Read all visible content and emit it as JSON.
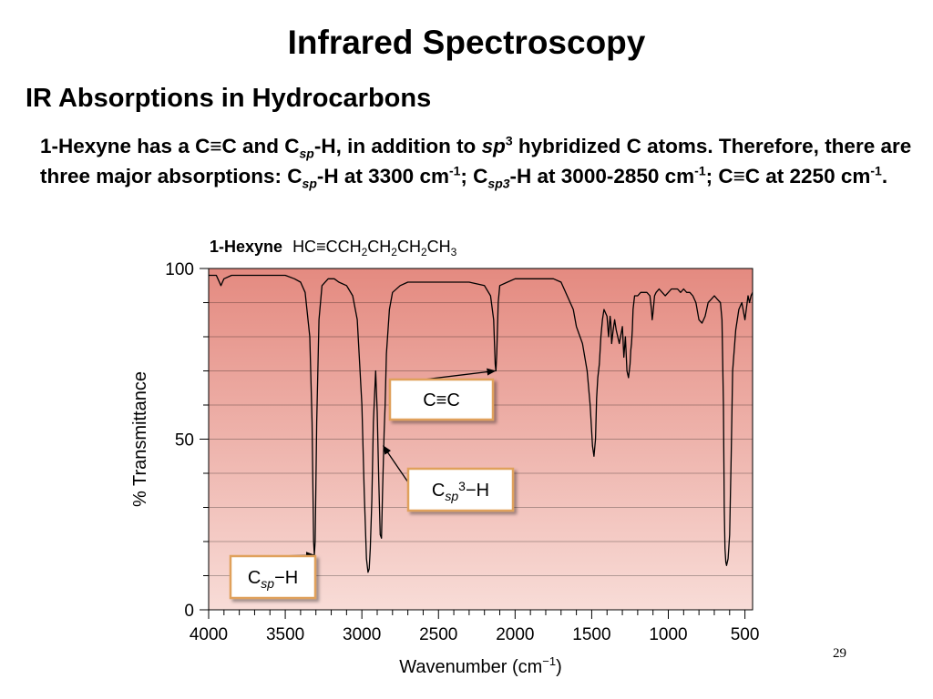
{
  "slide": {
    "title": "Infrared Spectroscopy",
    "subtitle": "IR Absorptions in Hydrocarbons",
    "page_number": "29",
    "text": {
      "p1_a": "1-Hexyne has a C",
      "triple": "≡",
      "p1_b": "C and C",
      "sp": "sp",
      "p1_c": "-H, in addition to ",
      "sp3_base": "sp",
      "sup3": "3",
      "p1_d": " hybridized C atoms. Therefore, there are three major absorptions: C",
      "p1_e": "-H at 3300 cm",
      "sup_m1": "-1",
      "p1_f": "; C",
      "sp3_sub": "sp3",
      "p1_g": "-H at 3000-2850 cm",
      "p1_h": "; C",
      "p1_i": "C at 2250 cm",
      "p1_j": "."
    }
  },
  "chart_data": {
    "type": "line",
    "compound_name": "1-Hexyne",
    "formula": {
      "prefix": "HC",
      "bond": "≡",
      "parts": [
        "CCH",
        "2",
        "CH",
        "2",
        "CH",
        "2",
        "CH",
        "3"
      ]
    },
    "xlabel": "Wavenumber (cm",
    "xlabel_sup": "−1",
    "xlabel_end": ")",
    "ylabel": "% Transmittance",
    "xlim": [
      4000,
      450
    ],
    "ylim": [
      0,
      100
    ],
    "xticks": [
      4000,
      3500,
      3000,
      2500,
      2000,
      1500,
      1000,
      500
    ],
    "xtick_labels": [
      "4000",
      "3500",
      "3000",
      "2500",
      "2000",
      "1500",
      "1000",
      "500"
    ],
    "yticks": [
      0,
      50,
      100
    ],
    "ytick_labels": [
      "0",
      "50",
      "100"
    ],
    "colors": {
      "plot_top": "#e48a80",
      "plot_bottom": "#f8dcd7",
      "line": "#000000",
      "label_border": "#e0a15b"
    },
    "spectrum": {
      "x": [
        4000,
        3950,
        3920,
        3900,
        3850,
        3800,
        3700,
        3600,
        3500,
        3440,
        3400,
        3370,
        3340,
        3325,
        3315,
        3310,
        3305,
        3295,
        3280,
        3260,
        3220,
        3180,
        3150,
        3100,
        3060,
        3030,
        3000,
        2985,
        2970,
        2960,
        2952,
        2945,
        2935,
        2925,
        2910,
        2900,
        2890,
        2880,
        2872,
        2865,
        2855,
        2848,
        2840,
        2820,
        2800,
        2750,
        2700,
        2600,
        2500,
        2400,
        2300,
        2200,
        2160,
        2140,
        2130,
        2125,
        2120,
        2110,
        2100,
        2050,
        2000,
        1950,
        1900,
        1850,
        1800,
        1750,
        1700,
        1660,
        1620,
        1600,
        1560,
        1530,
        1510,
        1495,
        1485,
        1475,
        1468,
        1460,
        1450,
        1440,
        1430,
        1420,
        1400,
        1390,
        1380,
        1375,
        1370,
        1360,
        1350,
        1340,
        1330,
        1320,
        1300,
        1290,
        1280,
        1270,
        1260,
        1250,
        1245,
        1240,
        1235,
        1230,
        1220,
        1200,
        1180,
        1160,
        1140,
        1120,
        1110,
        1105,
        1100,
        1090,
        1080,
        1060,
        1040,
        1020,
        1000,
        980,
        960,
        940,
        920,
        900,
        880,
        860,
        840,
        820,
        800,
        780,
        760,
        740,
        720,
        700,
        680,
        660,
        650,
        640,
        635,
        630,
        625,
        620,
        610,
        600,
        590,
        580,
        560,
        540,
        520,
        500,
        480,
        470,
        460,
        450
      ],
      "y": [
        98,
        98,
        95,
        97,
        98,
        98,
        98,
        98,
        98,
        97,
        96,
        93,
        80,
        55,
        20,
        16,
        20,
        55,
        85,
        95,
        97,
        97,
        96,
        95,
        92,
        85,
        60,
        35,
        15,
        11,
        12,
        18,
        32,
        55,
        70,
        58,
        38,
        22,
        21,
        35,
        52,
        60,
        75,
        88,
        93,
        95,
        96,
        96,
        96,
        96,
        96,
        95,
        92,
        85,
        72,
        70,
        75,
        90,
        95,
        96,
        97,
        97,
        97,
        97,
        97,
        97,
        96,
        92,
        88,
        83,
        78,
        70,
        60,
        48,
        45,
        50,
        62,
        68,
        72,
        80,
        85,
        88,
        86,
        80,
        86,
        84,
        78,
        82,
        85,
        82,
        80,
        78,
        83,
        74,
        80,
        70,
        68,
        72,
        76,
        78,
        82,
        88,
        92,
        92,
        93,
        93,
        93,
        92,
        88,
        85,
        87,
        92,
        93,
        94,
        93,
        92,
        93,
        94,
        94,
        94,
        93,
        94,
        93,
        93,
        92,
        90,
        85,
        84,
        86,
        90,
        91,
        92,
        91,
        90,
        85,
        60,
        30,
        18,
        14,
        13,
        15,
        22,
        45,
        70,
        82,
        88,
        90,
        85,
        92,
        90,
        92,
        93
      ]
    },
    "annotations": [
      {
        "label_base": "C",
        "label_bond": "≡",
        "label_end": "C",
        "label_sub": "",
        "label_sup": "",
        "label_tail": "",
        "point": [
          2130,
          70
        ]
      },
      {
        "label_base": "C",
        "label_bond": "",
        "label_end": "",
        "label_sub": "sp",
        "label_sup": "3",
        "label_tail": "−H",
        "point": [
          2860,
          48
        ]
      },
      {
        "label_base": "C",
        "label_bond": "",
        "label_end": "",
        "label_sub": "sp",
        "label_sup": "",
        "label_tail": "−H",
        "point": [
          3310,
          16
        ]
      }
    ]
  }
}
